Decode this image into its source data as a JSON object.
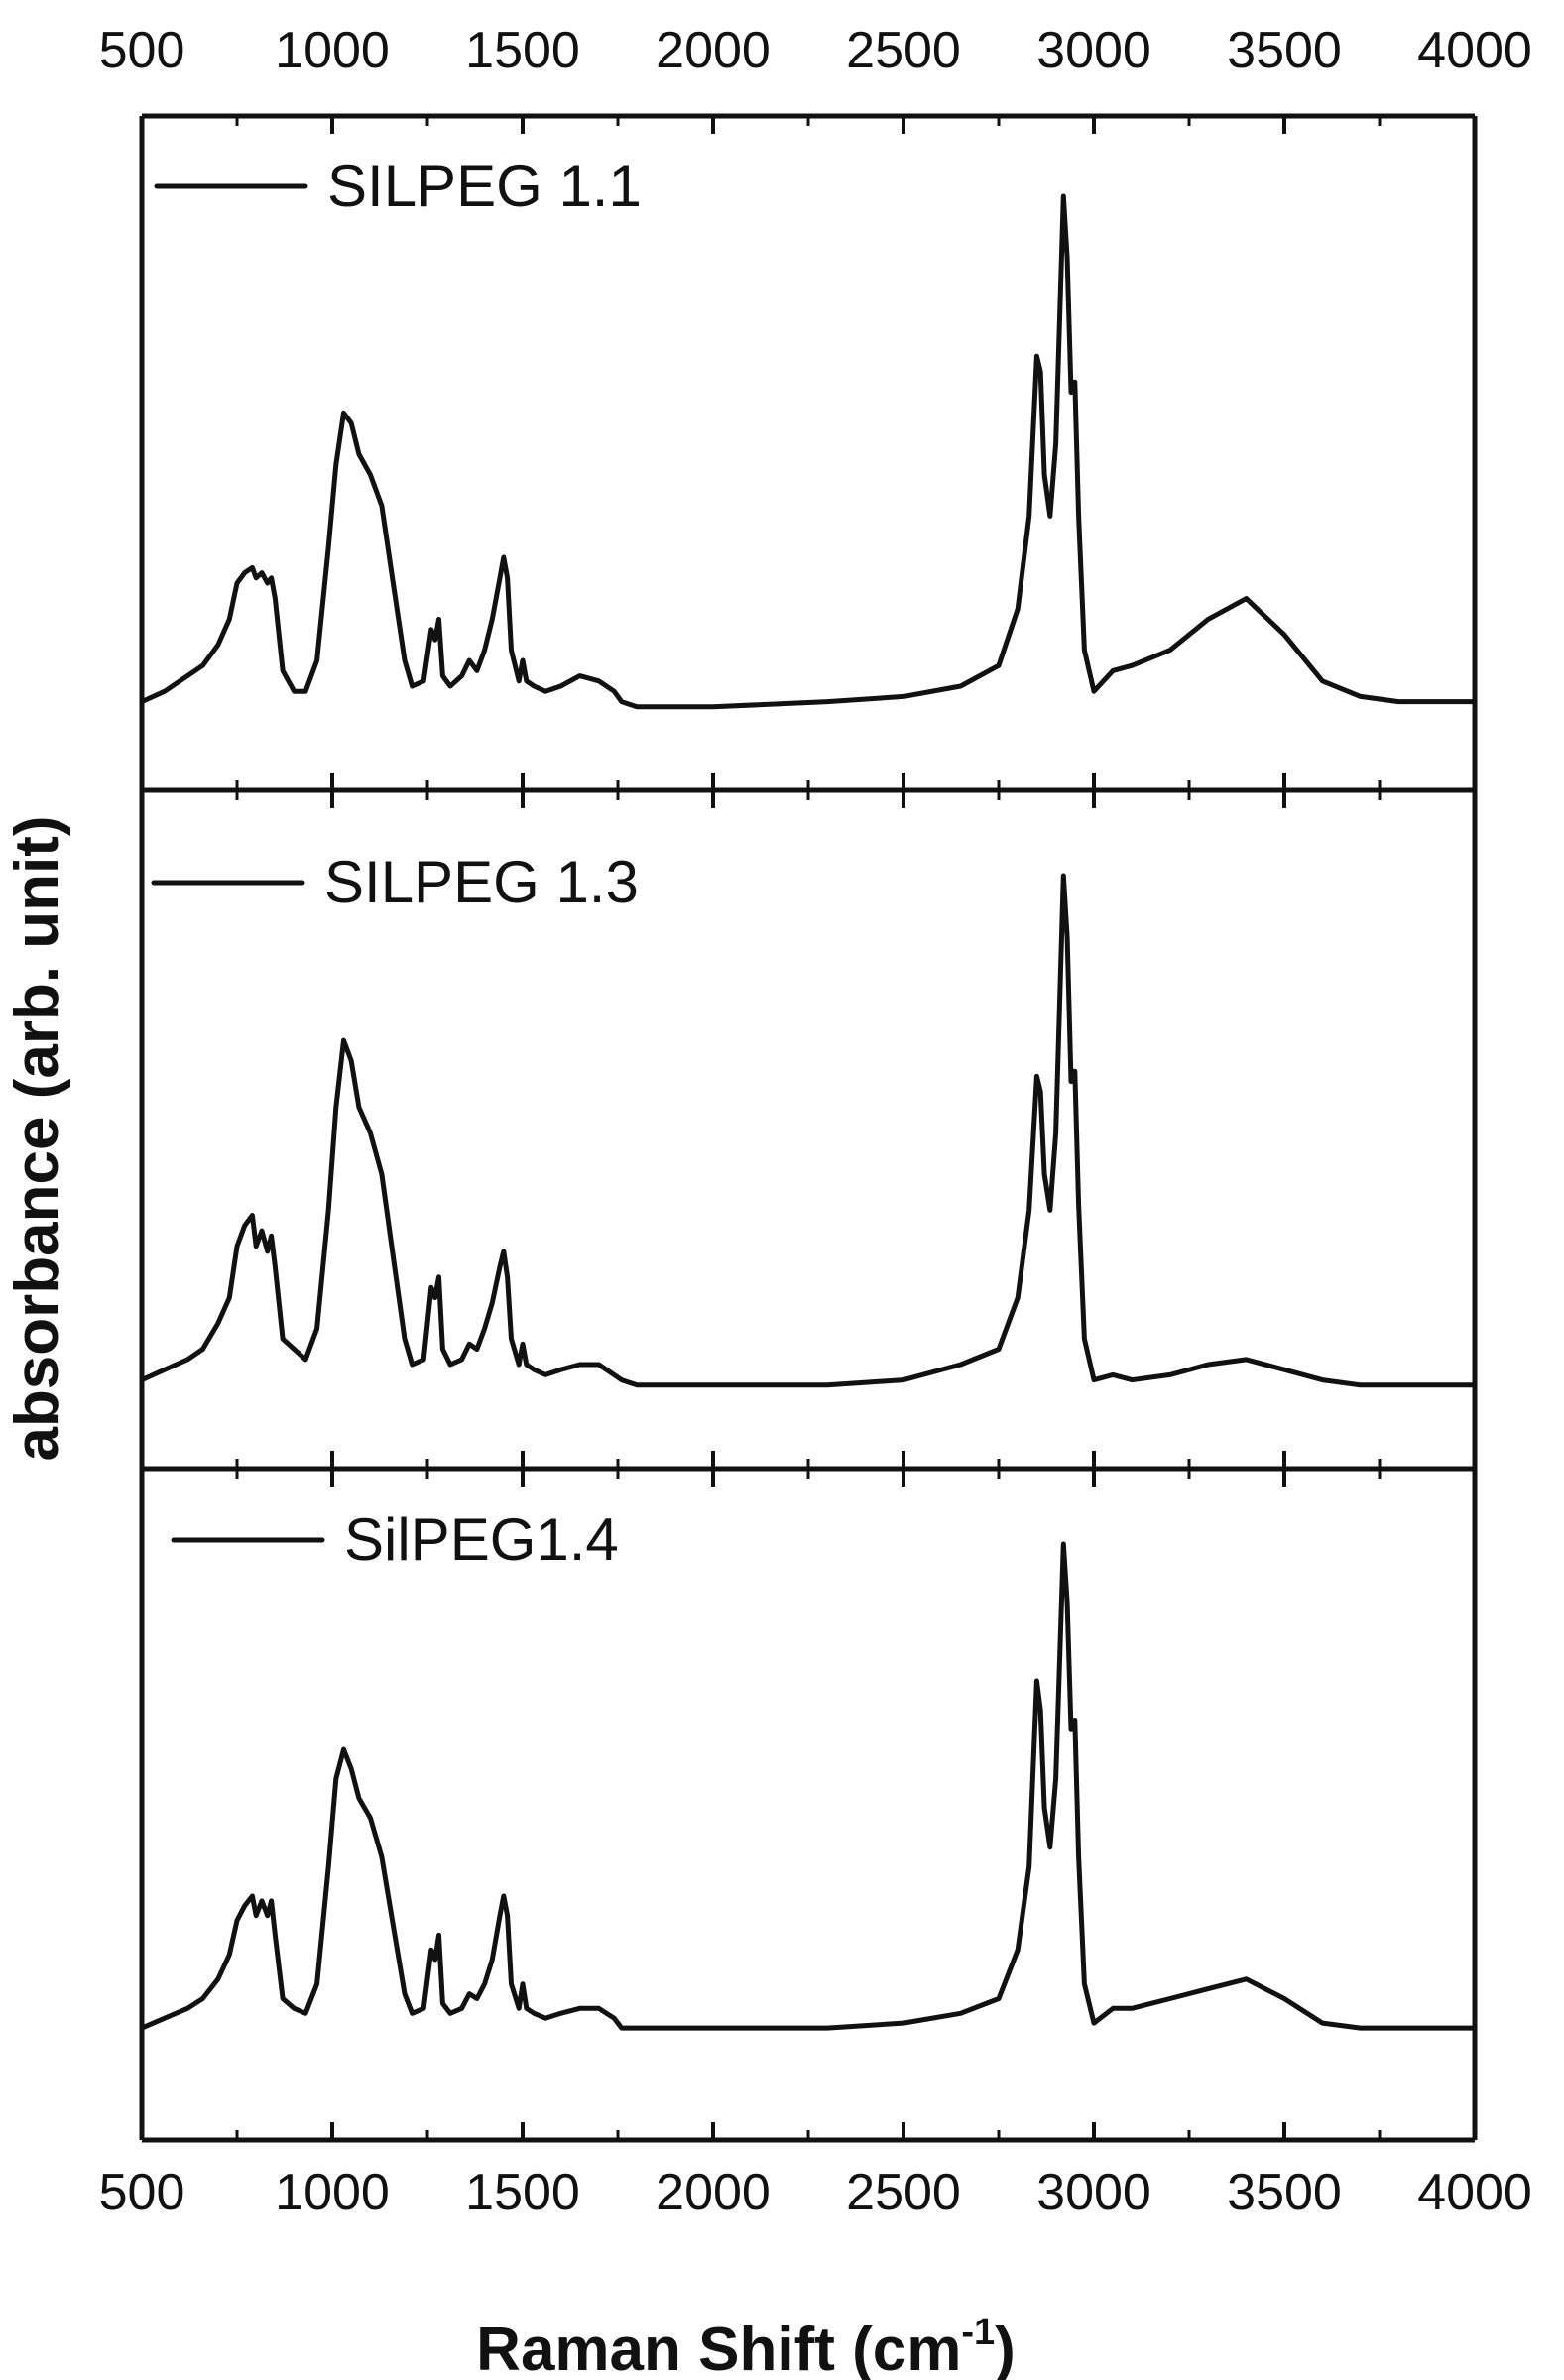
{
  "chart_data": {
    "type": "line",
    "xlabel": "Raman Shift (cm",
    "xlabel_superscript": "-1",
    "xlabel_suffix": ")",
    "ylabel": "absorbance (arb. unit)",
    "xlim": [
      500,
      4000
    ],
    "x_ticks": [
      500,
      1000,
      1500,
      2000,
      2500,
      3000,
      3500,
      4000
    ],
    "x_tick_labels": [
      "500",
      "1000",
      "1500",
      "2000",
      "2500",
      "3000",
      "3500",
      "4000"
    ],
    "ylim": [
      0,
      1
    ],
    "grid": false,
    "layout": "three stacked panels sharing the x axis; tick labels on top and bottom",
    "legend_placement": "top-left of each panel",
    "series": [
      {
        "name": "SILPEG 1.1",
        "x": [
          500,
          560,
          620,
          660,
          700,
          730,
          750,
          770,
          790,
          800,
          815,
          830,
          840,
          850,
          870,
          900,
          930,
          960,
          990,
          1010,
          1030,
          1050,
          1070,
          1100,
          1130,
          1160,
          1190,
          1210,
          1240,
          1260,
          1270,
          1280,
          1290,
          1310,
          1340,
          1360,
          1380,
          1400,
          1420,
          1440,
          1450,
          1460,
          1470,
          1490,
          1500,
          1510,
          1530,
          1560,
          1600,
          1650,
          1700,
          1740,
          1760,
          1800,
          2000,
          2300,
          2500,
          2650,
          2750,
          2800,
          2830,
          2850,
          2860,
          2870,
          2885,
          2900,
          2920,
          2930,
          2940,
          2950,
          2960,
          2975,
          3000,
          3050,
          3100,
          3200,
          3300,
          3400,
          3500,
          3600,
          3700,
          3800,
          4000
        ],
        "values": [
          0.02,
          0.04,
          0.07,
          0.09,
          0.13,
          0.18,
          0.25,
          0.27,
          0.28,
          0.26,
          0.27,
          0.25,
          0.26,
          0.22,
          0.08,
          0.04,
          0.04,
          0.1,
          0.32,
          0.48,
          0.58,
          0.56,
          0.5,
          0.46,
          0.4,
          0.25,
          0.1,
          0.05,
          0.06,
          0.16,
          0.14,
          0.18,
          0.07,
          0.05,
          0.07,
          0.1,
          0.08,
          0.12,
          0.18,
          0.26,
          0.3,
          0.26,
          0.12,
          0.06,
          0.1,
          0.06,
          0.05,
          0.04,
          0.05,
          0.07,
          0.06,
          0.04,
          0.02,
          0.01,
          0.01,
          0.02,
          0.03,
          0.05,
          0.09,
          0.2,
          0.38,
          0.69,
          0.66,
          0.46,
          0.38,
          0.52,
          1.0,
          0.88,
          0.62,
          0.64,
          0.38,
          0.12,
          0.04,
          0.08,
          0.09,
          0.12,
          0.18,
          0.22,
          0.15,
          0.06,
          0.03,
          0.02,
          0.02
        ]
      },
      {
        "name": "SILPEG 1.3",
        "x": [
          500,
          560,
          620,
          660,
          700,
          730,
          750,
          770,
          790,
          800,
          815,
          830,
          840,
          850,
          870,
          900,
          930,
          960,
          990,
          1010,
          1030,
          1050,
          1070,
          1100,
          1130,
          1160,
          1190,
          1210,
          1240,
          1260,
          1270,
          1280,
          1290,
          1310,
          1340,
          1360,
          1380,
          1400,
          1420,
          1440,
          1450,
          1460,
          1470,
          1490,
          1500,
          1510,
          1530,
          1560,
          1600,
          1650,
          1700,
          1740,
          1760,
          1800,
          2000,
          2300,
          2500,
          2650,
          2750,
          2800,
          2830,
          2850,
          2860,
          2870,
          2885,
          2900,
          2920,
          2930,
          2940,
          2950,
          2960,
          2975,
          3000,
          3050,
          3100,
          3200,
          3300,
          3400,
          3500,
          3600,
          3700,
          3800,
          4000
        ],
        "values": [
          0.02,
          0.04,
          0.06,
          0.08,
          0.13,
          0.18,
          0.28,
          0.32,
          0.34,
          0.28,
          0.31,
          0.27,
          0.3,
          0.24,
          0.1,
          0.08,
          0.06,
          0.12,
          0.35,
          0.55,
          0.68,
          0.64,
          0.55,
          0.5,
          0.42,
          0.26,
          0.1,
          0.05,
          0.06,
          0.2,
          0.18,
          0.22,
          0.08,
          0.05,
          0.06,
          0.09,
          0.08,
          0.12,
          0.17,
          0.24,
          0.27,
          0.22,
          0.1,
          0.05,
          0.09,
          0.05,
          0.04,
          0.03,
          0.04,
          0.05,
          0.05,
          0.03,
          0.02,
          0.01,
          0.01,
          0.01,
          0.02,
          0.05,
          0.08,
          0.18,
          0.35,
          0.61,
          0.58,
          0.42,
          0.35,
          0.5,
          1.0,
          0.88,
          0.6,
          0.62,
          0.36,
          0.1,
          0.02,
          0.03,
          0.02,
          0.03,
          0.05,
          0.06,
          0.04,
          0.02,
          0.01,
          0.01,
          0.01
        ]
      },
      {
        "name": "SilPEG1.4",
        "x": [
          500,
          560,
          620,
          660,
          700,
          730,
          750,
          770,
          790,
          800,
          815,
          830,
          840,
          850,
          870,
          900,
          930,
          960,
          990,
          1010,
          1030,
          1050,
          1070,
          1100,
          1130,
          1160,
          1190,
          1210,
          1240,
          1260,
          1270,
          1280,
          1290,
          1310,
          1340,
          1360,
          1380,
          1400,
          1420,
          1440,
          1450,
          1460,
          1470,
          1490,
          1500,
          1510,
          1530,
          1560,
          1600,
          1650,
          1700,
          1740,
          1760,
          1800,
          2000,
          2300,
          2500,
          2650,
          2750,
          2800,
          2830,
          2850,
          2860,
          2870,
          2885,
          2900,
          2920,
          2930,
          2940,
          2950,
          2960,
          2975,
          3000,
          3050,
          3100,
          3200,
          3300,
          3400,
          3500,
          3600,
          3700,
          3800,
          4000
        ],
        "values": [
          0.01,
          0.03,
          0.05,
          0.07,
          0.11,
          0.16,
          0.23,
          0.26,
          0.28,
          0.24,
          0.27,
          0.24,
          0.27,
          0.2,
          0.07,
          0.05,
          0.04,
          0.1,
          0.34,
          0.52,
          0.58,
          0.54,
          0.48,
          0.44,
          0.36,
          0.22,
          0.08,
          0.04,
          0.05,
          0.17,
          0.15,
          0.2,
          0.06,
          0.04,
          0.05,
          0.08,
          0.07,
          0.1,
          0.15,
          0.24,
          0.28,
          0.24,
          0.1,
          0.05,
          0.1,
          0.05,
          0.04,
          0.03,
          0.04,
          0.05,
          0.05,
          0.03,
          0.01,
          0.01,
          0.01,
          0.01,
          0.02,
          0.04,
          0.07,
          0.17,
          0.34,
          0.72,
          0.66,
          0.46,
          0.38,
          0.52,
          1.0,
          0.88,
          0.62,
          0.64,
          0.36,
          0.1,
          0.02,
          0.05,
          0.05,
          0.07,
          0.09,
          0.11,
          0.07,
          0.02,
          0.01,
          0.01,
          0.01
        ]
      }
    ]
  }
}
